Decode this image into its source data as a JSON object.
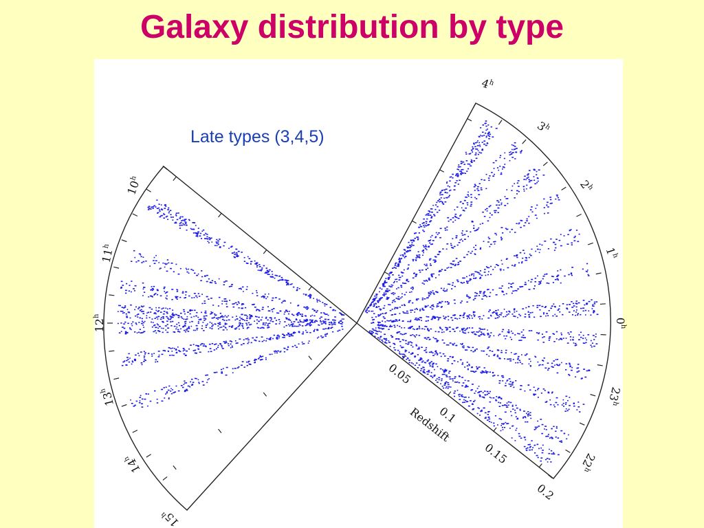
{
  "slide": {
    "title": "Galaxy distribution by type",
    "background_color": "#ffffc0",
    "title_color": "#cc0066"
  },
  "figure": {
    "panel_label": "Late types (3,4,5)",
    "panel_label_color": "#1a3fb5",
    "point_color": "#1a1ae6",
    "redshift_axis": {
      "title": "Redshift",
      "tick_labels": [
        "0.05",
        "0.1",
        "0.15",
        "0.2"
      ],
      "range": [
        0,
        0.2
      ]
    },
    "left_wedge_ra_labels": [
      {
        "hour": "10",
        "sup": "h"
      },
      {
        "hour": "11",
        "sup": "h"
      },
      {
        "hour": "12",
        "sup": "h"
      },
      {
        "hour": "13",
        "sup": "h"
      },
      {
        "hour": "14",
        "sup": "h"
      },
      {
        "hour": "15",
        "sup": "h"
      }
    ],
    "right_wedge_ra_labels": [
      {
        "hour": "4",
        "sup": "h"
      },
      {
        "hour": "3",
        "sup": "h"
      },
      {
        "hour": "2",
        "sup": "h"
      },
      {
        "hour": "1",
        "sup": "h"
      },
      {
        "hour": "0",
        "sup": "h"
      },
      {
        "hour": "23",
        "sup": "h"
      },
      {
        "hour": "22",
        "sup": "h"
      }
    ]
  }
}
